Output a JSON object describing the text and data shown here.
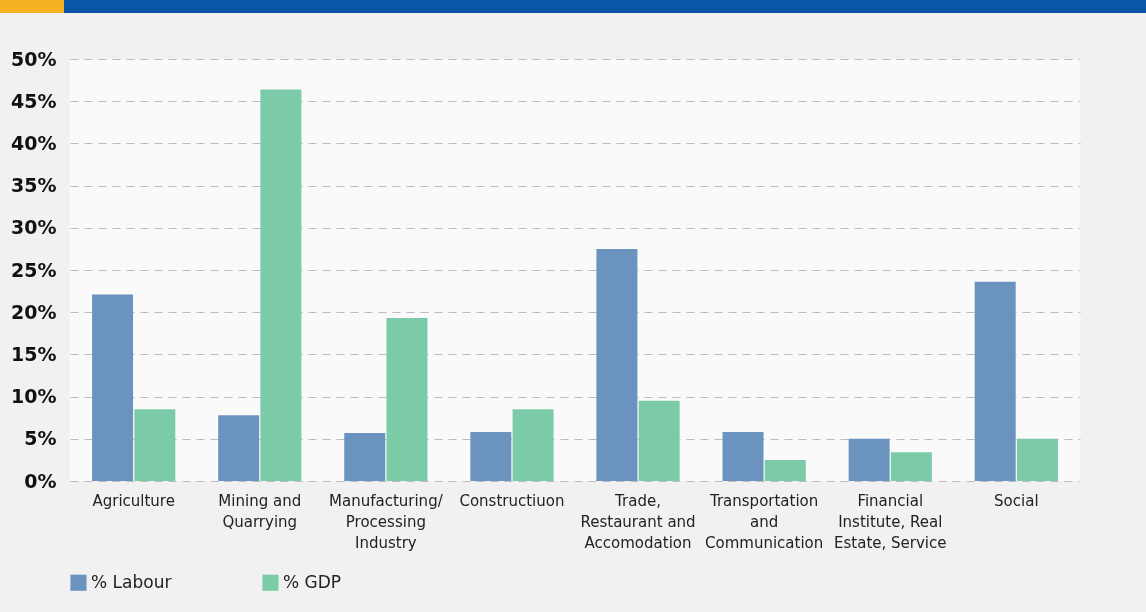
{
  "chart_data": {
    "type": "bar",
    "categories": [
      "Agriculture",
      "Mining and Quarrying",
      "Manufacturing/ Processing Industry",
      "Constructiuon",
      "Trade, Restaurant and Accomodation",
      "Transportation and Communication",
      "Financial Institute, Real Estate, Service",
      "Social"
    ],
    "series": [
      {
        "name": "% Labour",
        "color": "#6a93c0",
        "values": [
          22.1,
          7.8,
          5.7,
          5.8,
          27.5,
          5.8,
          5.0,
          23.6
        ]
      },
      {
        "name": "% GDP",
        "color": "#7bcba9",
        "values": [
          8.5,
          46.4,
          19.3,
          8.5,
          9.5,
          2.5,
          3.4,
          5.0
        ]
      }
    ],
    "ylim": [
      0,
      50
    ],
    "yticks": [
      {
        "value": 0,
        "label": "0%"
      },
      {
        "value": 5,
        "label": "5%"
      },
      {
        "value": 10,
        "label": "10%"
      },
      {
        "value": 15,
        "label": "15%"
      },
      {
        "value": 20,
        "label": "20%"
      },
      {
        "value": 25,
        "label": "25%"
      },
      {
        "value": 30,
        "label": "30%"
      },
      {
        "value": 35,
        "label": "35%"
      },
      {
        "value": 40,
        "label": "40%"
      },
      {
        "value": 45,
        "label": "45%"
      },
      {
        "value": 50,
        "label": "50%"
      }
    ],
    "grid": "y",
    "legend": "bottom"
  }
}
